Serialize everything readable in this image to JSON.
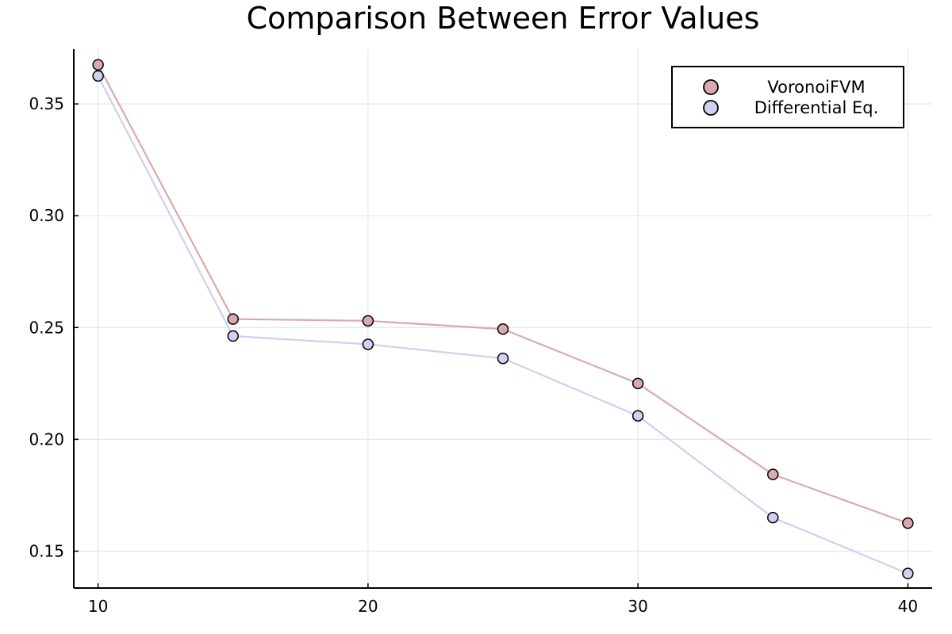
{
  "chart_data": {
    "type": "line",
    "title": "Comparison Between Error Values",
    "xlabel": "",
    "ylabel": "",
    "x": [
      10,
      15,
      20,
      25,
      30,
      35,
      40
    ],
    "xlim": [
      9.1,
      40.9
    ],
    "ylim": [
      0.1335,
      0.3745
    ],
    "x_ticks": [
      10,
      20,
      30,
      40
    ],
    "x_tick_labels": [
      "10",
      "20",
      "30",
      "40"
    ],
    "y_ticks": [
      0.15,
      0.2,
      0.25,
      0.3,
      0.35
    ],
    "y_tick_labels": [
      "0.15",
      "0.20",
      "0.25",
      "0.30",
      "0.35"
    ],
    "grid": true,
    "legend_position": "top-right",
    "markers": true,
    "series": [
      {
        "name": "VoronoiFVM",
        "color": "#d8aab0",
        "values": [
          0.3675,
          0.2538,
          0.253,
          0.2493,
          0.225,
          0.1843,
          0.1625
        ]
      },
      {
        "name": "Differential Eq.",
        "color": "#cfcff2",
        "values": [
          0.3625,
          0.2462,
          0.2425,
          0.2362,
          0.2105,
          0.165,
          0.14
        ]
      }
    ]
  }
}
